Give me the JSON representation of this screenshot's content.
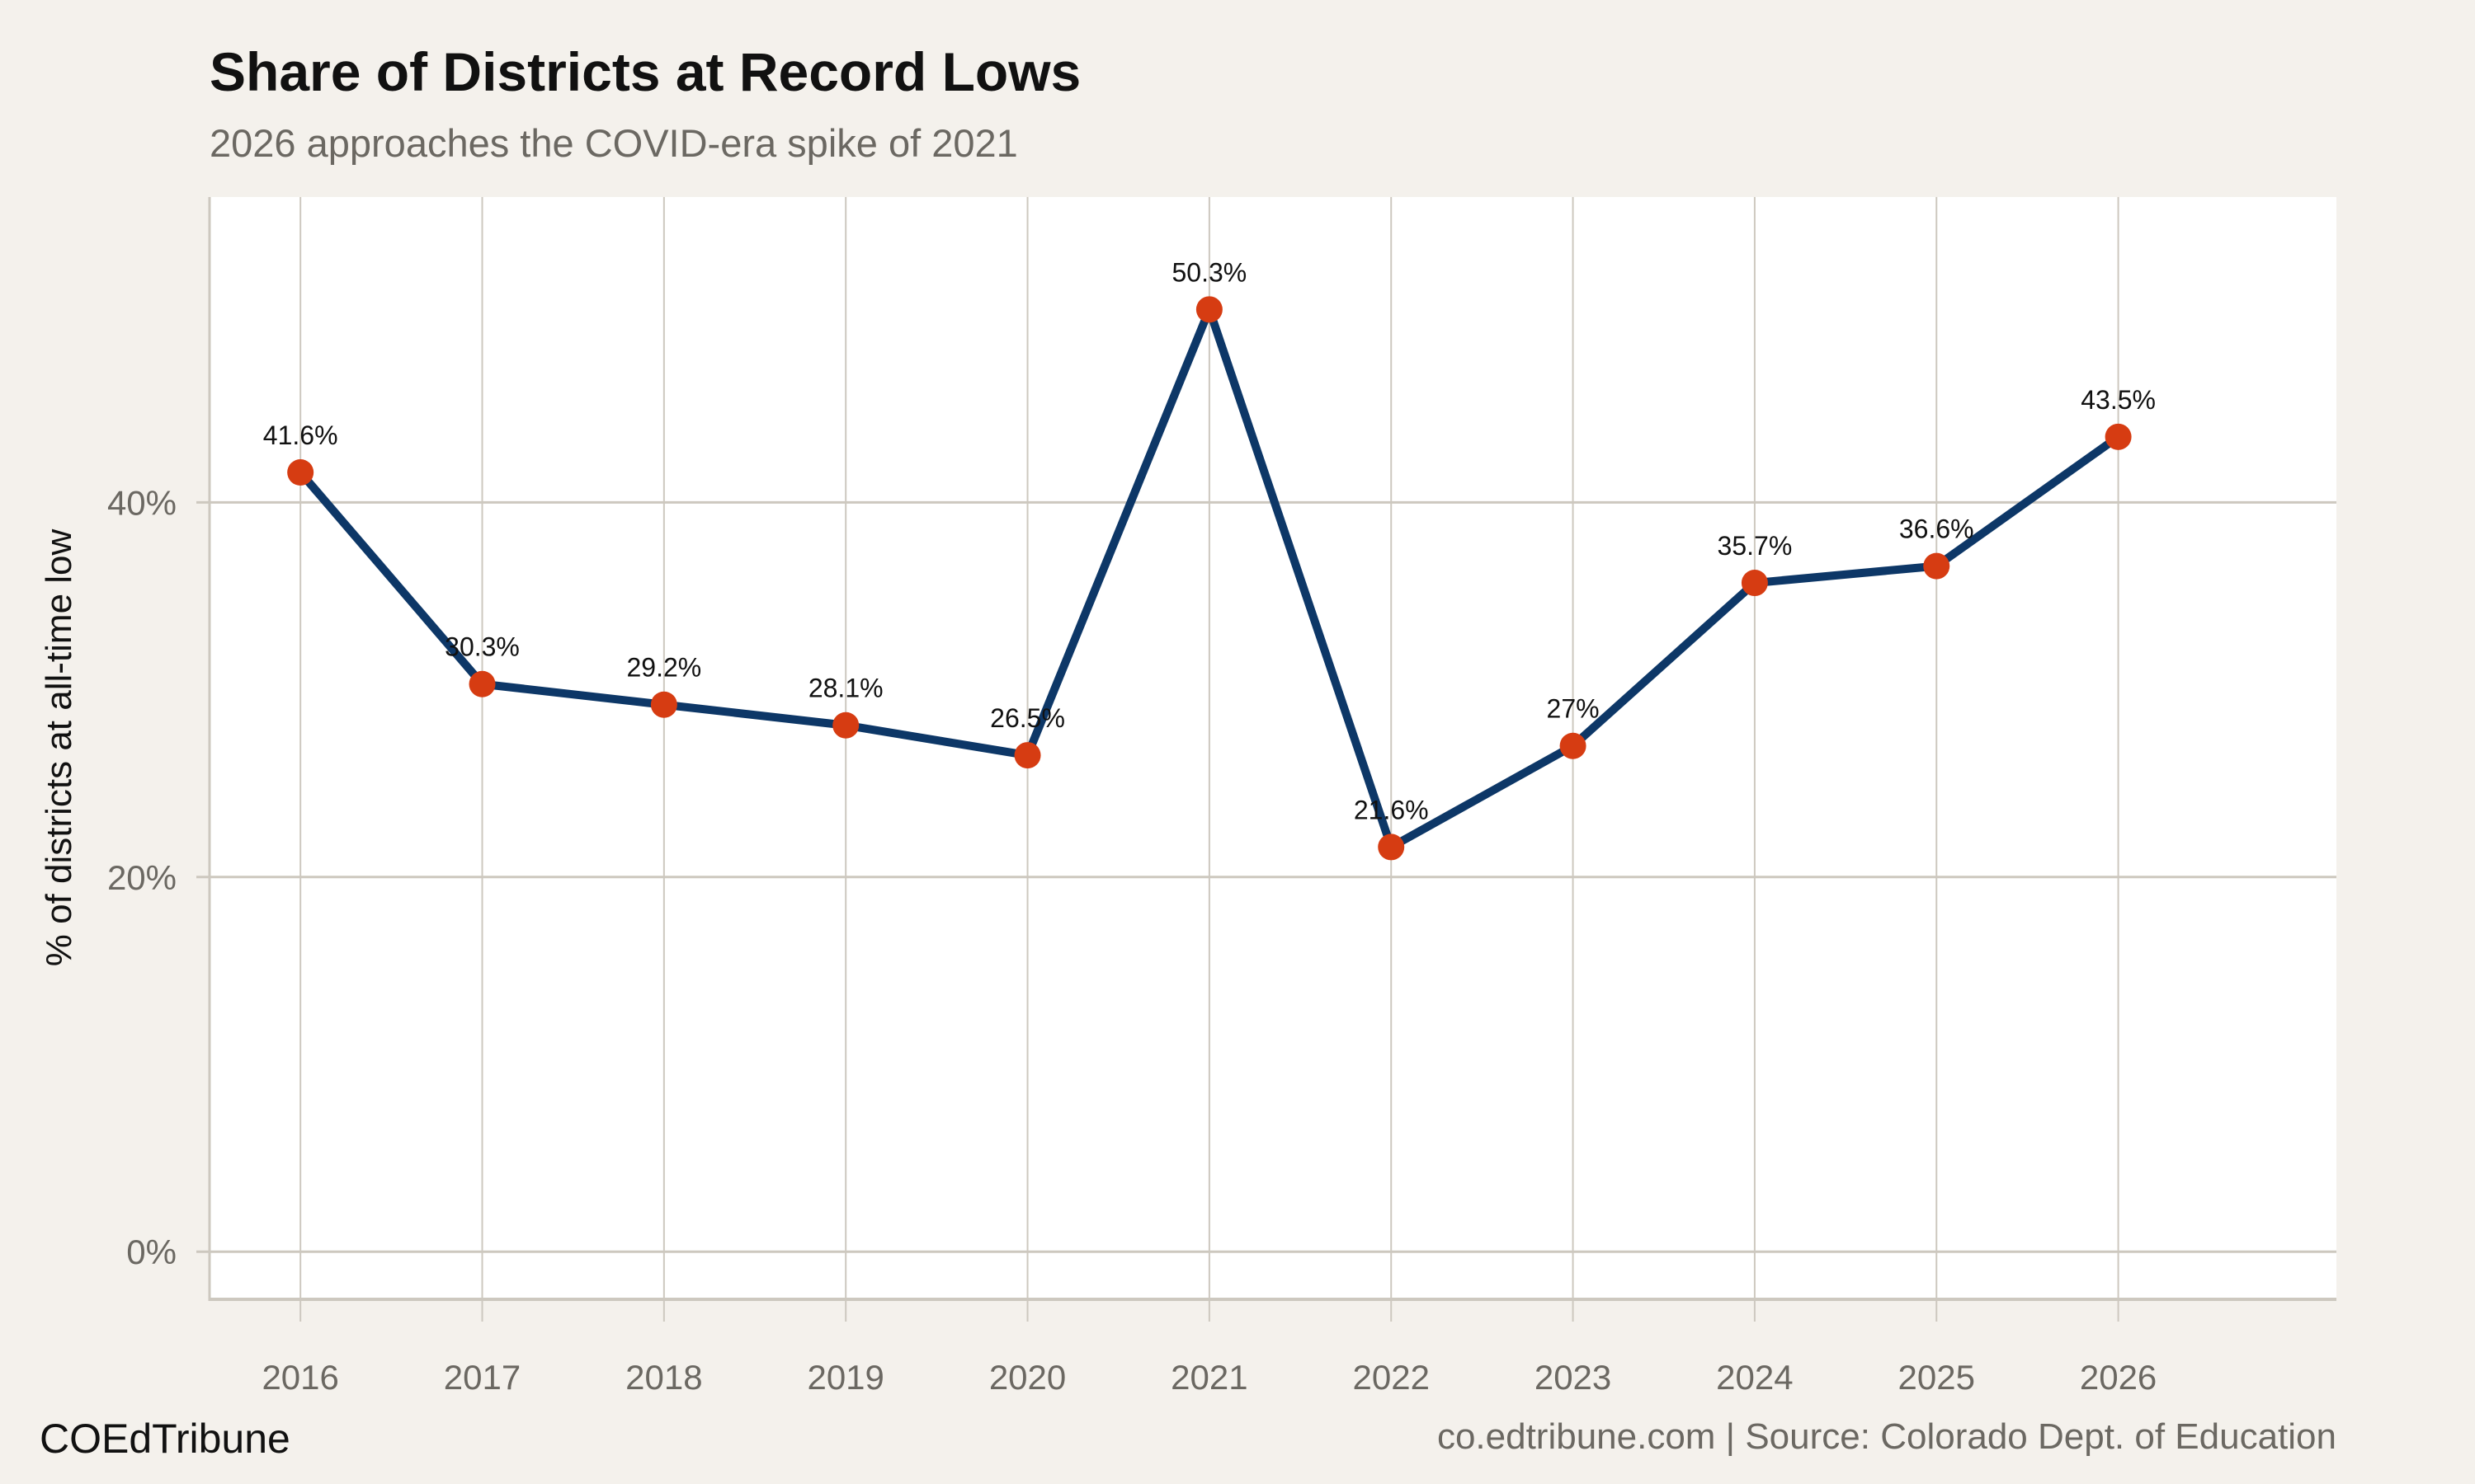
{
  "chart_data": {
    "type": "line",
    "title": "Share of Districts at Record Lows",
    "subtitle": "2026 approaches the COVID-era spike of 2021",
    "xlabel": "",
    "ylabel": "% of districts at all-time low",
    "x": [
      2016,
      2017,
      2018,
      2019,
      2020,
      2021,
      2022,
      2023,
      2024,
      2025,
      2026
    ],
    "values": [
      41.6,
      30.3,
      29.2,
      28.1,
      26.5,
      50.3,
      21.6,
      27.0,
      35.7,
      36.6,
      43.5
    ],
    "data_labels": [
      "41.6%",
      "30.3%",
      "29.2%",
      "28.1%",
      "26.5%",
      "50.3%",
      "21.6%",
      "27%",
      "35.7%",
      "36.6%",
      "43.5%"
    ],
    "x_ticks": [
      "2016",
      "2017",
      "2018",
      "2019",
      "2020",
      "2021",
      "2022",
      "2023",
      "2024",
      "2025",
      "2026"
    ],
    "y_ticks": [
      0,
      20,
      40
    ],
    "y_tick_labels": [
      "0%",
      "20%",
      "40%"
    ],
    "ylim": [
      -2.5,
      56.3
    ],
    "xlim": [
      2015.5,
      2027.2
    ],
    "grid": true,
    "legend": "none",
    "colors": {
      "line": "#0d3767",
      "points": "#d63c12",
      "background": "#f4f1ec",
      "panel": "#ffffff",
      "grid": "#cdc8bf"
    }
  },
  "footer": {
    "brand": "COEdTribune",
    "source": "co.edtribune.com | Source: Colorado Dept. of Education"
  }
}
